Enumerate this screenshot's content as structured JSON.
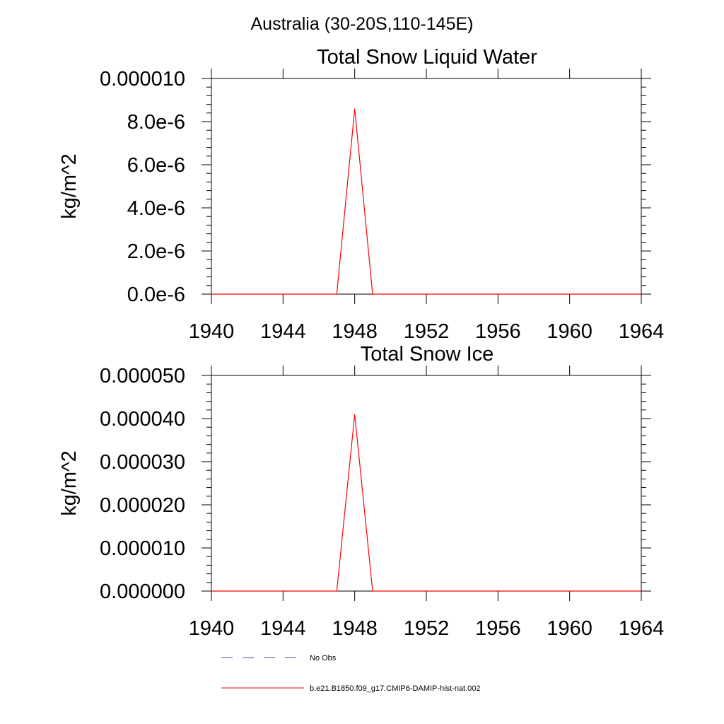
{
  "figure_title": "Australia (30-20S,110-145E)",
  "chart_data": [
    {
      "type": "line",
      "title": "Total Snow Liquid Water",
      "ylabel": "kg/m^2",
      "xlabel": "",
      "xlim": [
        1940,
        1964
      ],
      "ylim": [
        0,
        1e-05
      ],
      "x_ticks": [
        1940,
        1944,
        1948,
        1952,
        1956,
        1960,
        1964
      ],
      "x_tick_labels": [
        "1940",
        "1944",
        "1948",
        "1952",
        "1956",
        "1960",
        "1964"
      ],
      "y_ticks": [
        0,
        2e-06,
        4e-06,
        6e-06,
        8e-06,
        1e-05
      ],
      "y_tick_labels": [
        "0.0e-6",
        "2.0e-6",
        "4.0e-6",
        "6.0e-6",
        "8.0e-6",
        "0.000010"
      ],
      "grid": false,
      "series": [
        {
          "name": "b.e21.B1850.f09_g17.CMIP6-DAMIP-hist-nat.002",
          "color": "#ff0000",
          "x": [
            1940,
            1947,
            1948,
            1949,
            1964
          ],
          "values": [
            0,
            0,
            8.6e-06,
            0,
            0
          ]
        }
      ]
    },
    {
      "type": "line",
      "title": "Total Snow Ice",
      "ylabel": "kg/m^2",
      "xlabel": "",
      "xlim": [
        1940,
        1964
      ],
      "ylim": [
        0,
        5e-05
      ],
      "x_ticks": [
        1940,
        1944,
        1948,
        1952,
        1956,
        1960,
        1964
      ],
      "x_tick_labels": [
        "1940",
        "1944",
        "1948",
        "1952",
        "1956",
        "1960",
        "1964"
      ],
      "y_ticks": [
        0,
        1e-05,
        2e-05,
        3e-05,
        4e-05,
        5e-05
      ],
      "y_tick_labels": [
        "0.000000",
        "0.000010",
        "0.000020",
        "0.000030",
        "0.000040",
        "0.000050"
      ],
      "grid": false,
      "series": [
        {
          "name": "b.e21.B1850.f09_g17.CMIP6-DAMIP-hist-nat.002",
          "color": "#ff0000",
          "x": [
            1940,
            1947,
            1948,
            1949,
            1964
          ],
          "values": [
            0,
            0,
            4.1e-05,
            0,
            0
          ]
        }
      ]
    }
  ],
  "legend": [
    {
      "label": "No Obs",
      "style": "dashed",
      "color": "#4a4a8a"
    },
    {
      "label": "b.e21.B1850.f09_g17.CMIP6-DAMIP-hist-nat.002",
      "style": "solid",
      "color": "#ff0000"
    }
  ]
}
